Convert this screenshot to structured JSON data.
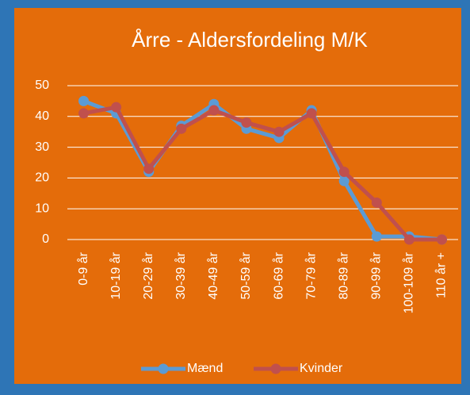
{
  "chart_data": {
    "type": "line",
    "title": "Årre - Aldersfordeling M/K",
    "categories": [
      "0-9 år",
      "10-19 år",
      "20-29 år",
      "30-39 år",
      "40-49 år",
      "50-59 år",
      "60-69 år",
      "70-79 år",
      "80-89 år",
      "90-99 år",
      "100-109 år",
      "110 år +"
    ],
    "series": [
      {
        "name": "Mænd",
        "color": "#5b9bd5",
        "values": [
          45,
          41,
          22,
          37,
          44,
          36,
          33,
          42,
          19,
          1,
          1,
          0
        ]
      },
      {
        "name": "Kvinder",
        "color": "#c0504d",
        "values": [
          41,
          43,
          23,
          36,
          42,
          38,
          35,
          41,
          22,
          12,
          0,
          0
        ]
      }
    ],
    "ylim": [
      0,
      50
    ],
    "yticks": [
      0,
      10,
      20,
      30,
      40,
      50
    ],
    "grid": true,
    "legend": "bottom"
  }
}
